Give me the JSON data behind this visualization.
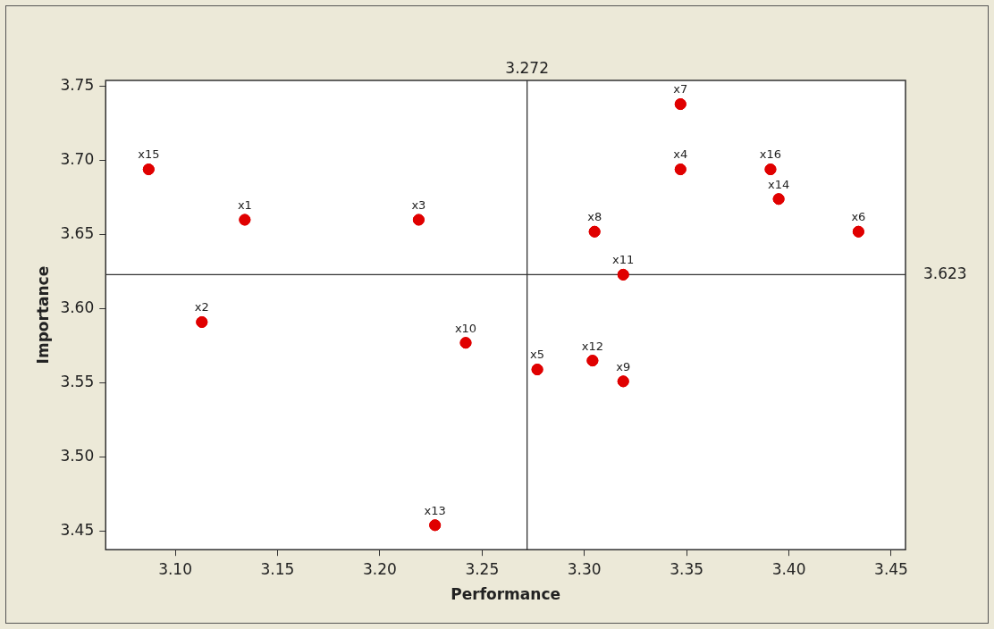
{
  "chart_data": {
    "type": "scatter",
    "xlabel": "Performance",
    "ylabel": "Importance",
    "series": [
      {
        "color": "#e00000",
        "x": [
          3.134,
          3.113,
          3.219,
          3.347,
          3.277,
          3.434,
          3.347,
          3.305,
          3.319,
          3.242,
          3.319,
          3.304,
          3.227,
          3.395,
          3.087,
          3.391
        ],
        "values": [
          3.66,
          3.591,
          3.66,
          3.694,
          3.559,
          3.652,
          3.738,
          3.652,
          3.551,
          3.577,
          3.623,
          3.565,
          3.454,
          3.674,
          3.694,
          3.694
        ]
      }
    ],
    "annotations": [
      {
        "text": "x1",
        "x": 3.134,
        "y": 3.66
      },
      {
        "text": "x2",
        "x": 3.113,
        "y": 3.591
      },
      {
        "text": "x3",
        "x": 3.219,
        "y": 3.66
      },
      {
        "text": "x4",
        "x": 3.347,
        "y": 3.694
      },
      {
        "text": "x5",
        "x": 3.277,
        "y": 3.559
      },
      {
        "text": "x6",
        "x": 3.434,
        "y": 3.652
      },
      {
        "text": "x7",
        "x": 3.347,
        "y": 3.738
      },
      {
        "text": "x8",
        "x": 3.305,
        "y": 3.652
      },
      {
        "text": "x9",
        "x": 3.319,
        "y": 3.551
      },
      {
        "text": "x10",
        "x": 3.242,
        "y": 3.577
      },
      {
        "text": "x11",
        "x": 3.319,
        "y": 3.623
      },
      {
        "text": "x12",
        "x": 3.304,
        "y": 3.565
      },
      {
        "text": "x13",
        "x": 3.227,
        "y": 3.454
      },
      {
        "text": "x14",
        "x": 3.395,
        "y": 3.674
      },
      {
        "text": "x15",
        "x": 3.087,
        "y": 3.694
      },
      {
        "text": "x16",
        "x": 3.391,
        "y": 3.694
      }
    ],
    "ref_lines": [
      {
        "axis": "x",
        "value": 3.272,
        "label": "3.272",
        "color": "#333333"
      },
      {
        "axis": "y",
        "value": 3.623,
        "label": "3.623",
        "color": "#333333"
      }
    ],
    "xlim": [
      3.066,
      3.457
    ],
    "xticks": [
      {
        "value": 3.1,
        "label": "3.10"
      },
      {
        "value": 3.15,
        "label": "3.15"
      },
      {
        "value": 3.2,
        "label": "3.20"
      },
      {
        "value": 3.25,
        "label": "3.25"
      },
      {
        "value": 3.3,
        "label": "3.30"
      },
      {
        "value": 3.35,
        "label": "3.35"
      },
      {
        "value": 3.4,
        "label": "3.40"
      },
      {
        "value": 3.45,
        "label": "3.45"
      }
    ],
    "ylim": [
      3.4375,
      3.754
    ],
    "yticks": [
      {
        "value": 3.45,
        "label": "3.45"
      },
      {
        "value": 3.5,
        "label": "3.50"
      },
      {
        "value": 3.55,
        "label": "3.55"
      },
      {
        "value": 3.6,
        "label": "3.60"
      },
      {
        "value": 3.65,
        "label": "3.65"
      },
      {
        "value": 3.7,
        "label": "3.70"
      },
      {
        "value": 3.75,
        "label": "3.75"
      }
    ],
    "marker": "circle"
  }
}
